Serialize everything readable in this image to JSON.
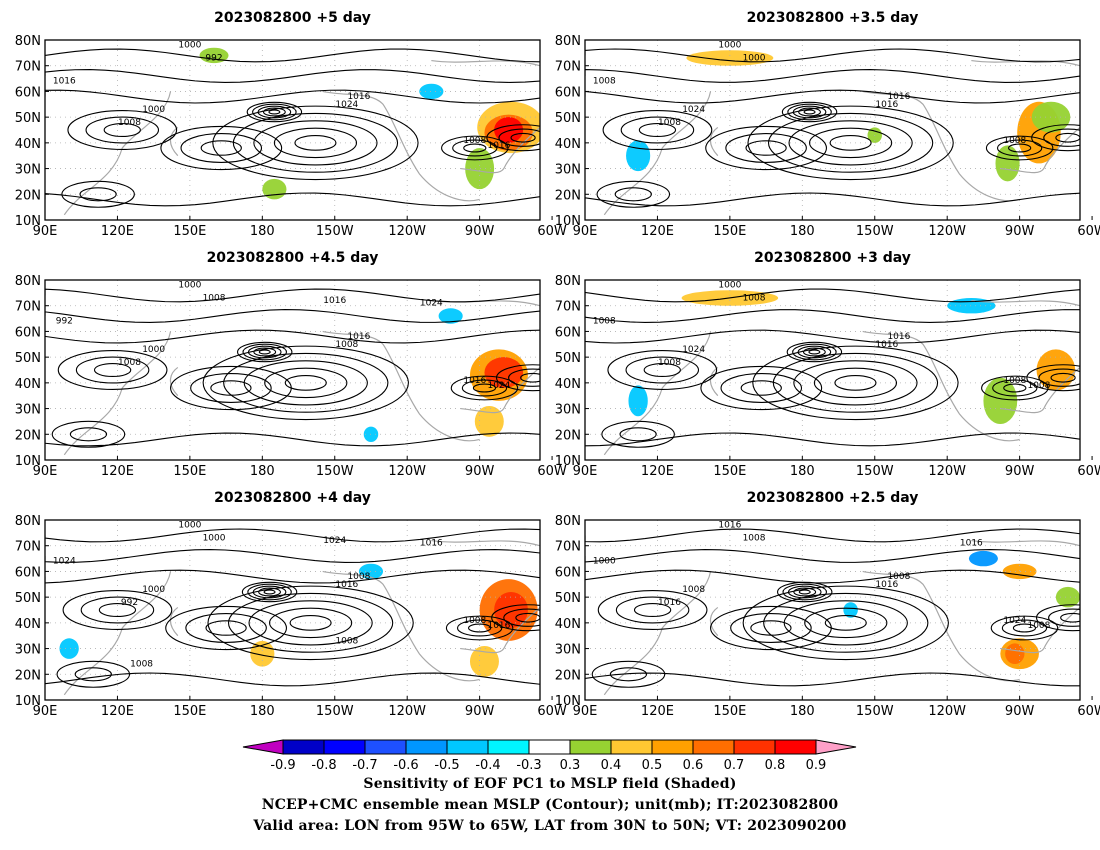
{
  "panels": [
    {
      "title": "2023082800  +5 day",
      "contour_labels": [
        "1000",
        "992",
        "1016",
        "1016",
        "1024",
        "1000",
        "1008",
        "1008",
        "1016"
      ],
      "blobs": [
        {
          "lon": -80,
          "lat": 42,
          "c": "#e8d000"
        },
        {
          "lon": -78,
          "lat": 44,
          "c": "#ff0000"
        }
      ]
    },
    {
      "title": "2023082800  +3.5 day",
      "contour_labels": [
        "1000",
        "1000",
        "1008",
        "1016",
        "1016",
        "1024",
        "1008",
        "1008"
      ],
      "blobs": []
    },
    {
      "title": "2023082800  +4.5 day",
      "contour_labels": [
        "1000",
        "1008",
        "992",
        "1016",
        "1008",
        "1000",
        "1008",
        "1016",
        "1024",
        "1024",
        "1016"
      ],
      "blobs": []
    },
    {
      "title": "2023082800  +3 day",
      "contour_labels": [
        "1000",
        "1008",
        "1008",
        "1016",
        "1016",
        "1024",
        "1008",
        "1008",
        "1008"
      ],
      "blobs": []
    },
    {
      "title": "2023082800  +4 day",
      "contour_labels": [
        "1000",
        "1000",
        "1024",
        "1008",
        "1016",
        "1000",
        "992",
        "1008",
        "1016",
        "1016",
        "1024",
        "1008",
        "1008"
      ],
      "blobs": []
    },
    {
      "title": "2023082800  +2.5 day",
      "contour_labels": [
        "1016",
        "1008",
        "1000",
        "1008",
        "1016",
        "1008",
        "1016",
        "1024",
        "1008",
        "1016"
      ],
      "blobs": []
    }
  ],
  "lat_labels": [
    "80N",
    "70N",
    "60N",
    "50N",
    "40N",
    "30N",
    "20N",
    "10N"
  ],
  "lon_labels": [
    "90E",
    "120E",
    "150E",
    "180",
    "150W",
    "120W",
    "90W",
    "60W"
  ],
  "colorbar": {
    "labels": [
      "-0.9",
      "-0.8",
      "-0.7",
      "-0.6",
      "-0.5",
      "-0.4",
      "-0.3",
      "0.3",
      "0.4",
      "0.5",
      "0.6",
      "0.7",
      "0.8",
      "0.9"
    ],
    "colors": [
      "#c000c0",
      "#0000c8",
      "#0000ff",
      "#1e50ff",
      "#0096ff",
      "#00c8ff",
      "#00f5ff",
      "#ffffff",
      "#96d232",
      "#ffc832",
      "#ffa000",
      "#ff6e00",
      "#ff3200",
      "#ff0000",
      "#ffa0c8"
    ]
  },
  "caption": {
    "line1": "Sensitivity of EOF PC1 to MSLP field (Shaded)",
    "line2": "NCEP+CMC ensemble mean MSLP (Contour); unit(mb); IT:2023082800",
    "line3": "Valid area: LON from 95W to 65W, LAT from 30N to 50N; VT: 2023090200"
  }
}
